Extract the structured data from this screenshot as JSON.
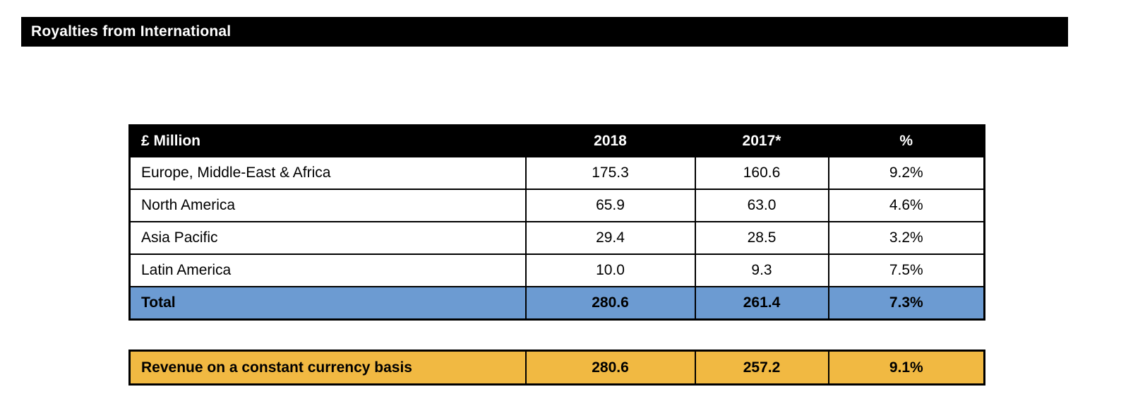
{
  "title_bar": {
    "label": "Royalties from International",
    "bg_color": "#000000",
    "text_color": "#ffffff"
  },
  "table": {
    "header": {
      "unit": "£ Million",
      "col_2018": "2018",
      "col_2017": "2017*",
      "col_pct": "%"
    },
    "rows": [
      [
        "Europe, Middle-East & Africa",
        "175.3",
        "160.6",
        "9.2%"
      ],
      [
        "North America",
        "65.9",
        "63.0",
        "4.6%"
      ],
      [
        "Asia Pacific",
        "29.4",
        "28.5",
        "3.2%"
      ],
      [
        "Latin America",
        "10.0",
        "9.3",
        "7.5%"
      ]
    ],
    "total_row": [
      "Total",
      "280.6",
      "261.4",
      "7.3%"
    ],
    "total_bg_color": "#6C9BD2"
  },
  "constant_currency_row": {
    "cells": [
      "Revenue on a constant currency basis",
      "280.6",
      "257.2",
      "9.1%"
    ],
    "bg_color": "#F1B942"
  },
  "chart_data": {
    "type": "table",
    "title": "Royalties from International",
    "unit": "£ Million",
    "columns": [
      "£ Million",
      "2018",
      "2017*",
      "%"
    ],
    "categories": [
      "Europe, Middle-East & Africa",
      "North America",
      "Asia Pacific",
      "Latin America",
      "Total",
      "Revenue on a constant currency basis"
    ],
    "series": [
      {
        "name": "2018",
        "values": [
          175.3,
          65.9,
          29.4,
          10.0,
          280.6,
          280.6
        ]
      },
      {
        "name": "2017*",
        "values": [
          160.6,
          63.0,
          28.5,
          9.3,
          261.4,
          257.2
        ]
      },
      {
        "name": "%",
        "values": [
          "9.2%",
          "4.6%",
          "3.2%",
          "7.5%",
          "7.3%",
          "9.1%"
        ]
      }
    ]
  }
}
